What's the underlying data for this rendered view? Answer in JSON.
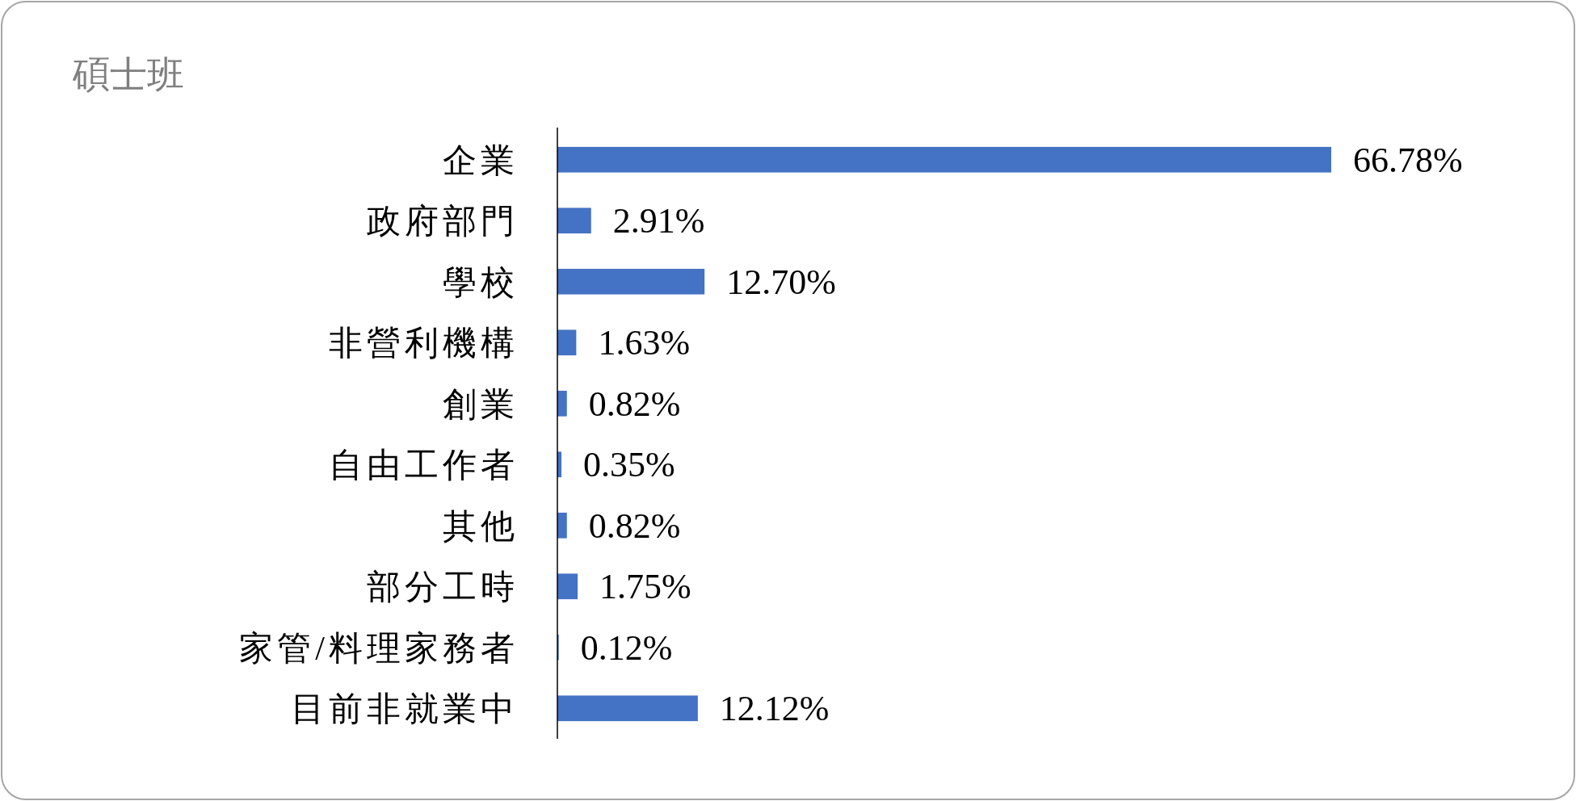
{
  "chart_data": {
    "type": "bar",
    "orientation": "horizontal",
    "title": "碩士班",
    "categories": [
      "企業",
      "政府部門",
      "學校",
      "非營利機構",
      "創業",
      "自由工作者",
      "其他",
      "部分工時",
      "家管/料理家務者",
      "目前非就業中"
    ],
    "values": [
      66.78,
      2.91,
      12.7,
      1.63,
      0.82,
      0.35,
      0.82,
      1.75,
      0.12,
      12.12
    ],
    "value_labels": [
      "66.78%",
      "2.91%",
      "12.70%",
      "1.63%",
      "0.82%",
      "0.35%",
      "0.82%",
      "1.75%",
      "0.12%",
      "12.12%"
    ],
    "color": "#4472c4"
  }
}
